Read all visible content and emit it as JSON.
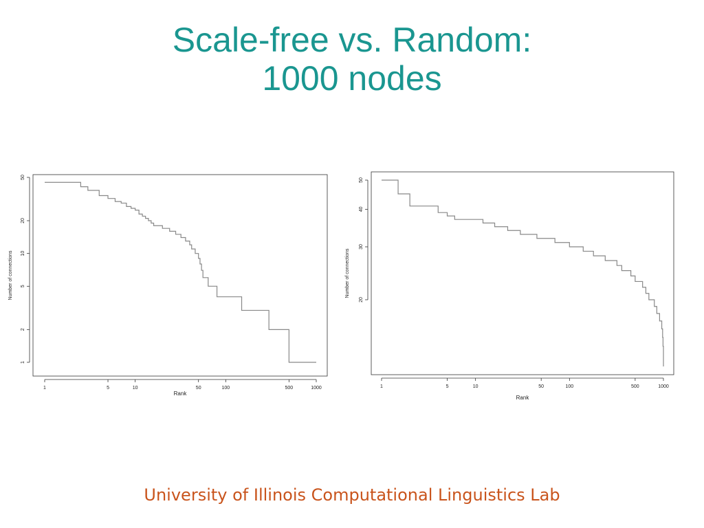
{
  "slide": {
    "title_line1": "Scale-free vs. Random:",
    "title_line2": "1000 nodes",
    "footer": "University of Illinois Computational Linguistics Lab",
    "title_color": "#1a9690",
    "footer_color": "#c9541c"
  },
  "chart_data": [
    {
      "type": "line",
      "step": true,
      "xscale": "log",
      "yscale": "log",
      "xlabel": "Rank",
      "ylabel": "Number of connections",
      "xlim": [
        1,
        1000
      ],
      "ylim": [
        1,
        50
      ],
      "xticks": [
        1,
        5,
        10,
        50,
        100,
        500,
        1000
      ],
      "yticks": [
        1,
        2,
        5,
        10,
        20,
        50
      ],
      "line_color": "#888888",
      "grid": false,
      "series": [
        {
          "x": [
            1,
            2,
            2.5,
            3,
            4,
            5,
            6,
            7,
            8,
            9,
            10,
            11,
            12,
            13,
            14,
            15,
            16,
            18,
            20,
            22,
            24,
            26,
            28,
            30,
            32,
            34,
            36,
            38,
            40,
            42,
            44,
            46,
            48,
            50,
            52,
            54,
            56,
            58,
            60,
            62,
            64,
            66,
            68,
            70,
            75,
            80,
            90,
            100,
            110,
            125,
            150,
            200,
            250,
            300,
            350,
            400,
            450,
            500,
            600,
            700,
            800,
            900,
            1000
          ],
          "y": [
            45,
            45,
            41,
            38,
            34,
            32,
            30,
            29,
            27,
            26,
            25,
            23,
            22,
            21,
            20,
            19,
            18,
            18,
            17,
            17,
            16,
            16,
            15,
            15,
            14,
            14,
            13,
            13,
            12,
            11,
            11,
            10,
            10,
            9,
            8,
            7,
            6,
            6,
            6,
            6,
            5,
            5,
            5,
            5,
            5,
            4,
            4,
            4,
            4,
            4,
            3,
            3,
            3,
            2,
            2,
            2,
            2,
            1,
            1,
            1,
            1,
            1,
            1
          ]
        }
      ]
    },
    {
      "type": "line",
      "step": true,
      "xscale": "log",
      "yscale": "log",
      "xlabel": "Rank",
      "ylabel": "Number of connections",
      "xlim": [
        1,
        1000
      ],
      "ylim": [
        12,
        50
      ],
      "xticks": [
        1,
        5,
        10,
        50,
        100,
        500,
        1000
      ],
      "yticks": [
        20,
        30,
        40,
        50
      ],
      "line_color": "#888888",
      "grid": false,
      "series": [
        {
          "x": [
            1,
            1.5,
            2,
            3,
            4,
            5,
            6,
            8,
            10,
            12,
            14,
            16,
            18,
            20,
            22,
            25,
            28,
            30,
            35,
            40,
            45,
            50,
            60,
            70,
            80,
            90,
            100,
            120,
            140,
            160,
            180,
            200,
            240,
            280,
            320,
            360,
            400,
            450,
            500,
            550,
            600,
            650,
            700,
            750,
            800,
            850,
            880,
            910,
            940,
            960,
            980,
            990,
            1000
          ],
          "y": [
            50,
            45,
            41,
            41,
            39,
            38,
            37,
            37,
            37,
            36,
            36,
            35,
            35,
            35,
            34,
            34,
            34,
            33,
            33,
            33,
            32,
            32,
            32,
            31,
            31,
            31,
            30,
            30,
            29,
            29,
            28,
            28,
            27,
            27,
            26,
            25,
            25,
            24,
            23,
            23,
            22,
            21,
            20,
            20,
            19,
            18,
            18,
            17,
            17,
            16,
            15,
            14,
            12
          ]
        }
      ]
    }
  ]
}
